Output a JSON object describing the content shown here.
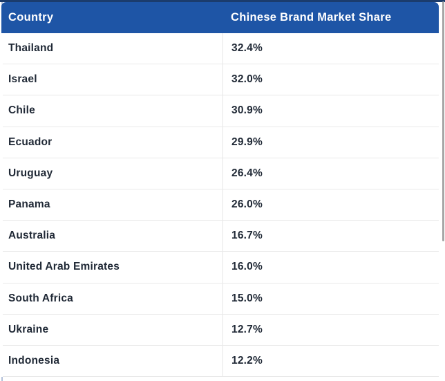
{
  "colors": {
    "header_bg": "#1e55a6",
    "top_strip": "#1b3c6d",
    "header_text": "#ffffff",
    "row_text": "#1f2835",
    "row_separator": "#e9e9e9",
    "column_divider": "#e4e4e4",
    "left_border": "#b3c1da",
    "scrollbar_thumb": "#a6a6a6"
  },
  "table": {
    "columns": [
      "Country",
      "Chinese Brand Market Share"
    ],
    "rows": [
      {
        "country": "Thailand",
        "share": "32.4%"
      },
      {
        "country": "Israel",
        "share": "32.0%"
      },
      {
        "country": "Chile",
        "share": "30.9%"
      },
      {
        "country": "Ecuador",
        "share": "29.9%"
      },
      {
        "country": "Uruguay",
        "share": "26.4%"
      },
      {
        "country": "Panama",
        "share": "26.0%"
      },
      {
        "country": "Australia",
        "share": "16.7%"
      },
      {
        "country": "United Arab Emirates",
        "share": "16.0%"
      },
      {
        "country": "South Africa",
        "share": "15.0%"
      },
      {
        "country": "Ukraine",
        "share": "12.7%"
      },
      {
        "country": "Indonesia",
        "share": "12.2%"
      }
    ]
  },
  "chart_data": {
    "type": "table",
    "columns": [
      "Country",
      "Chinese Brand Market Share"
    ],
    "categories": [
      "Thailand",
      "Israel",
      "Chile",
      "Ecuador",
      "Uruguay",
      "Panama",
      "Australia",
      "United Arab Emirates",
      "South Africa",
      "Ukraine",
      "Indonesia"
    ],
    "values": [
      32.4,
      32.0,
      30.9,
      29.9,
      26.4,
      26.0,
      16.7,
      16.0,
      15.0,
      12.7,
      12.2
    ],
    "unit": "%"
  }
}
